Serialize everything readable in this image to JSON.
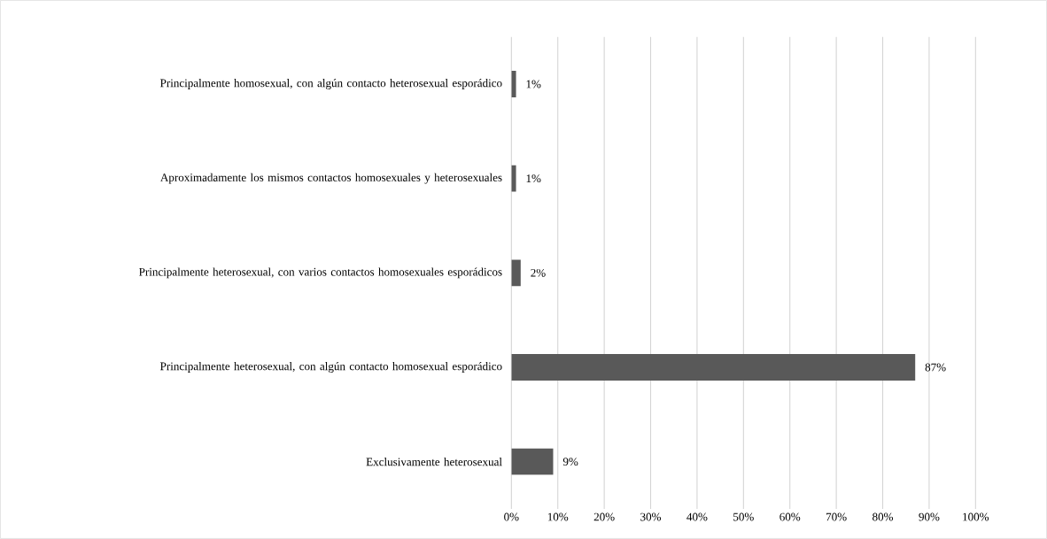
{
  "chart_data": {
    "type": "bar",
    "orientation": "horizontal",
    "categories": [
      "Principalmente homosexual, con algún contacto heterosexual esporádico",
      "Aproximadamente los mismos contactos homosexuales y heterosexuales",
      "Principalmente heterosexual, con varios contactos homosexuales esporádicos",
      "Principalmente heterosexual, con algún contacto homosexual esporádico",
      "Exclusivamente heterosexual"
    ],
    "values": [
      1,
      1,
      2,
      87,
      9
    ],
    "value_labels": [
      "1%",
      "1%",
      "2%",
      "87%",
      "9%"
    ],
    "color": "#595959",
    "xlim": [
      0,
      100
    ],
    "xticks": [
      {
        "value": 0,
        "label": "0%"
      },
      {
        "value": 10,
        "label": "10%"
      },
      {
        "value": 20,
        "label": "20%"
      },
      {
        "value": 30,
        "label": "30%"
      },
      {
        "value": 40,
        "label": "40%"
      },
      {
        "value": 50,
        "label": "50%"
      },
      {
        "value": 60,
        "label": "60%"
      },
      {
        "value": 70,
        "label": "70%"
      },
      {
        "value": 80,
        "label": "80%"
      },
      {
        "value": 90,
        "label": "90%"
      },
      {
        "value": 100,
        "label": "100%"
      }
    ],
    "grid": "x"
  }
}
